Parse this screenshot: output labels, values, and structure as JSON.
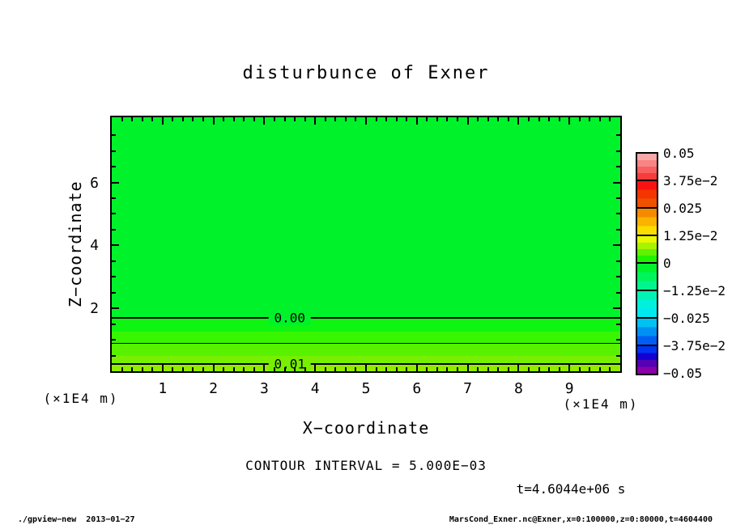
{
  "title": "disturbunce of Exner",
  "axes": {
    "x_label": "X−coordinate",
    "y_label": "Z−coordinate",
    "x_unit": "(×1E4 m)",
    "y_unit": "(×1E4 m)"
  },
  "annotations": {
    "contour_interval": "CONTOUR INTERVAL = 5.000E−03",
    "time": "t=4.6044e+06 s"
  },
  "footer": {
    "left": "./gpview−new  2013−01−27",
    "right": "MarsCond_Exner.nc@Exner,x=0:100000,z=0:80000,t=4604400"
  },
  "chart_data": {
    "type": "contour",
    "title": "disturbunce of Exner",
    "xlabel": "X−coordinate",
    "ylabel": "Z−coordinate",
    "x_unit_label": "(×1E4 m)",
    "z_unit_label": "(×1E4 m)",
    "time_label": "t=4.6044e+06 s",
    "time_seconds": 4604400,
    "contour_interval": 0.005,
    "x_axis": {
      "max": 10,
      "range_m": [
        0,
        100000
      ],
      "minor_step": 0.2
    },
    "z_axis": {
      "max": 8.07,
      "range_m": [
        0,
        80000
      ],
      "minor_step": 0.5,
      "minor_max": 7.5
    },
    "x_ticks": [
      1,
      2,
      3,
      4,
      5,
      6,
      7,
      8,
      9
    ],
    "z_ticks": [
      2,
      4,
      6
    ],
    "field_description": "Exner function disturbance: zero (green) over most of domain, positive layer near surface",
    "bands": [
      {
        "z_top": 8.07,
        "z_bottom": 1.7,
        "value_range": [
          -0.0025,
          0.0
        ],
        "color": "#00F22B"
      },
      {
        "z_top": 1.7,
        "z_bottom": 1.26,
        "value_range": [
          0.0,
          0.0025
        ],
        "color": "#0EF512"
      },
      {
        "z_top": 1.26,
        "z_bottom": 0.9,
        "value_range": [
          0.0025,
          0.005
        ],
        "color": "#38F600"
      },
      {
        "z_top": 0.9,
        "z_bottom": 0.49,
        "value_range": [
          0.005,
          0.0075
        ],
        "color": "#58F200"
      },
      {
        "z_top": 0.49,
        "z_bottom": 0.23,
        "value_range": [
          0.0075,
          0.01
        ],
        "color": "#78EF00"
      },
      {
        "z_top": 0.23,
        "z_bottom": 0.0,
        "value_range": [
          0.01,
          0.0125
        ],
        "color": "#92EC00"
      }
    ],
    "contours": [
      {
        "level": 0.0,
        "label": "0.00",
        "z": 1.7,
        "thick": true,
        "label_x": 3.5,
        "label_bg": "#00F22B"
      },
      {
        "level": 0.005,
        "label": "",
        "z": 0.9,
        "thick": false
      },
      {
        "level": 0.01,
        "label": "0.01",
        "z": 0.23,
        "thick": true,
        "label_x": 3.5,
        "label_bg": "#78EF00"
      }
    ],
    "colorbar": {
      "min": -0.05,
      "max": 0.05,
      "labels": [
        "0.05",
        "3.75e−2",
        "0.025",
        "1.25e−2",
        "0",
        "−1.25e−2",
        "−0.025",
        "−3.75e−2",
        "−0.05"
      ],
      "segments": [
        [
          "#F9A8A8",
          "#F98484",
          "#F96060",
          "#F83C3C"
        ],
        [
          "#F81212",
          "#F53500",
          "#EE5200"
        ],
        [
          "#F58A00",
          "#FAB300",
          "#FADC00"
        ],
        [
          "#E8F800",
          "#A8F400",
          "#60F200",
          "#20F300"
        ],
        [
          "#00F32B",
          "#00F45C",
          "#00F58D"
        ],
        [
          "#00F3B4",
          "#00F0DC",
          "#00E9F0"
        ],
        [
          "#00C2F2",
          "#0090F4",
          "#005EF4"
        ],
        [
          "#0034F2",
          "#1400D2",
          "#5400B4",
          "#8800A8"
        ]
      ]
    }
  }
}
